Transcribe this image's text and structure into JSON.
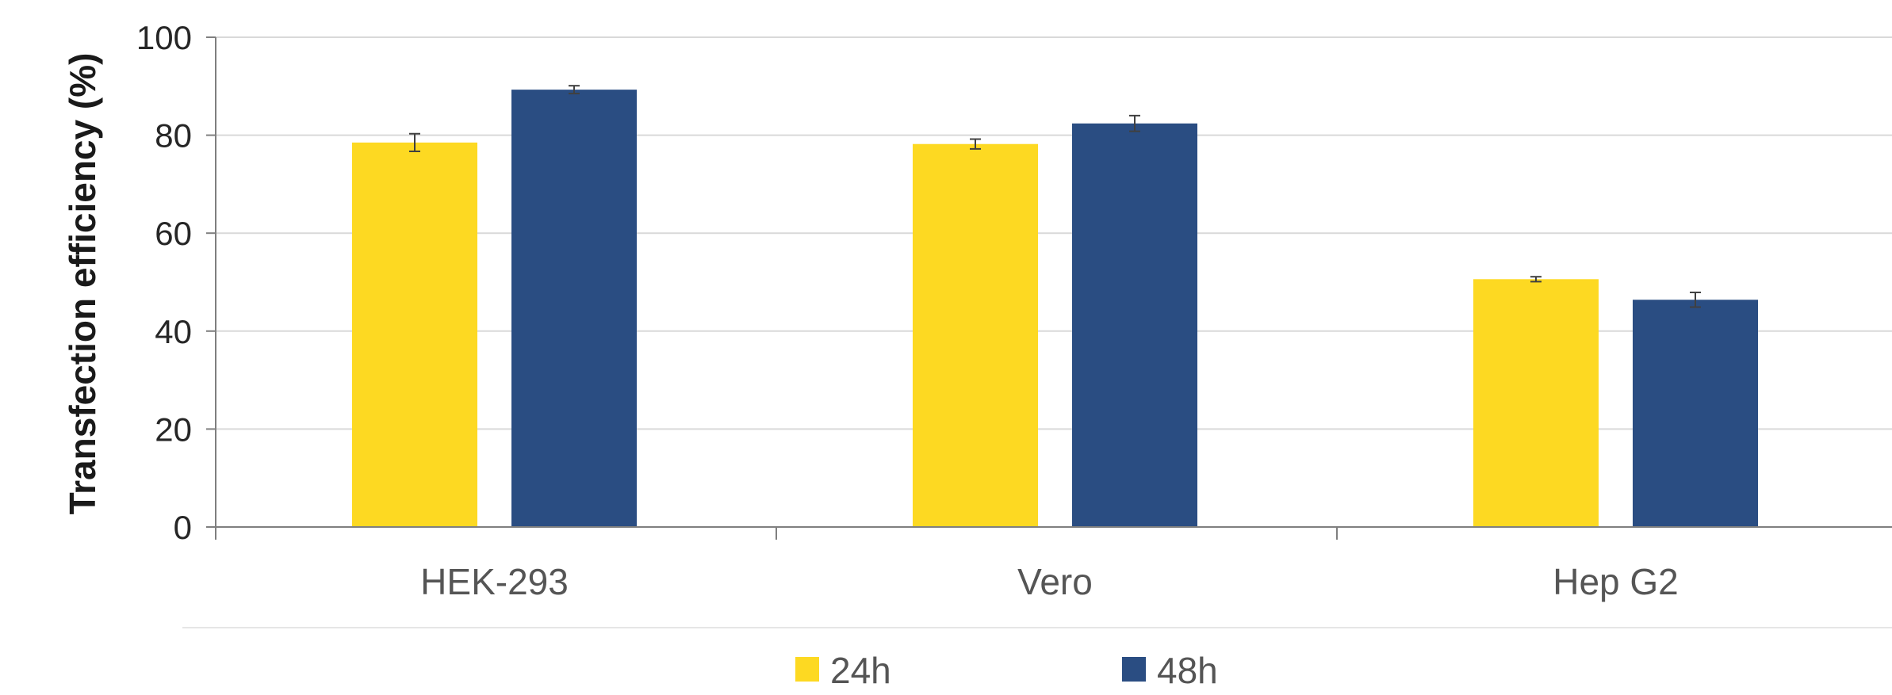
{
  "chart_data": {
    "type": "bar",
    "title": "",
    "xlabel": "",
    "ylabel": "Transfection efficiency (%)",
    "ylim": [
      0,
      100
    ],
    "yticks": [
      0,
      20,
      40,
      60,
      80,
      100
    ],
    "grid": true,
    "legend": "bottom",
    "categories": [
      "HEK-293",
      "Vero",
      "Hep G2"
    ],
    "series": [
      {
        "name": "24h",
        "color": "#FDD922",
        "values": [
          78.5,
          78.2,
          50.6
        ],
        "errors": [
          1.8,
          1.0,
          0.5
        ]
      },
      {
        "name": "48h",
        "color": "#2A4D82",
        "values": [
          89.3,
          82.4,
          46.4
        ],
        "errors": [
          0.8,
          1.6,
          1.5
        ]
      }
    ]
  }
}
